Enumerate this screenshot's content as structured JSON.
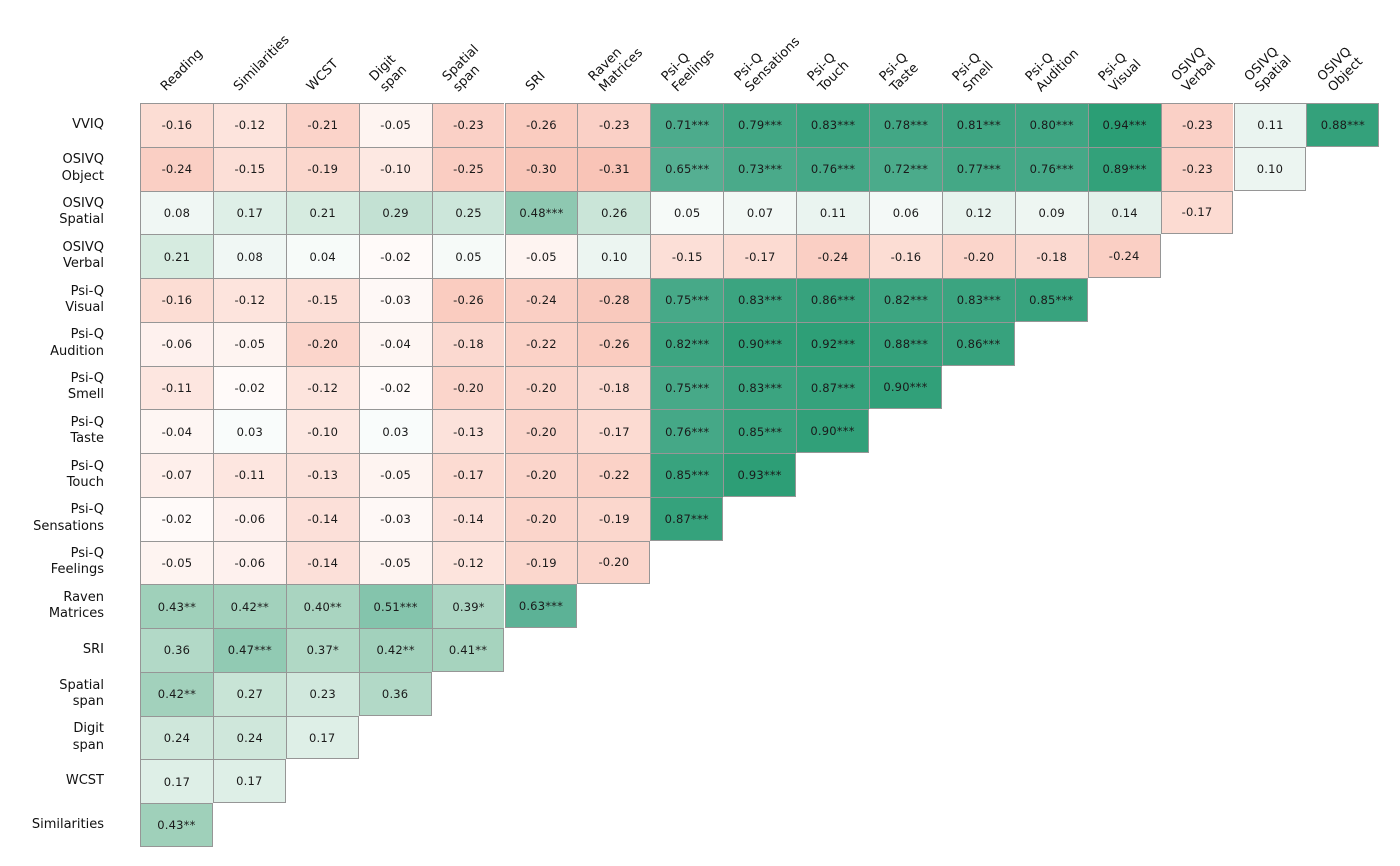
{
  "chart_data": {
    "type": "heatmap",
    "title": "",
    "layout_hint": "lower-left triangular correlation matrix, column labels rotated 45 degrees on top, row labels on left",
    "x_tick_labels": [
      "Reading",
      "Similarities",
      "WCST",
      "Digit\nspan",
      "Spatial\nspan",
      "SRI",
      "Raven\nMatrices",
      "Psi-Q\nFeelings",
      "Psi-Q\nSensations",
      "Psi-Q\nTouch",
      "Psi-Q\nTaste",
      "Psi-Q\nSmell",
      "Psi-Q\nAudition",
      "Psi-Q\nVisual",
      "OSIVQ\nVerbal",
      "OSIVQ\nSpatial",
      "OSIVQ\nObject"
    ],
    "y_tick_labels": [
      "VVIQ",
      "OSIVQ\nObject",
      "OSIVQ\nSpatial",
      "OSIVQ\nVerbal",
      "Psi-Q\nVisual",
      "Psi-Q\nAudition",
      "Psi-Q\nSmell",
      "Psi-Q\nTaste",
      "Psi-Q\nTouch",
      "Psi-Q\nSensations",
      "Psi-Q\nFeelings",
      "Raven\nMatrices",
      "SRI",
      "Spatial\nspan",
      "Digit\nspan",
      "WCST",
      "Similarities"
    ],
    "cells": [
      [
        "-0.16",
        "-0.12",
        "-0.21",
        "-0.05",
        "-0.23",
        "-0.26",
        "-0.23",
        "0.71***",
        "0.79***",
        "0.83***",
        "0.78***",
        "0.81***",
        "0.80***",
        "0.94***",
        "-0.23",
        "0.11",
        "0.88***"
      ],
      [
        "-0.24",
        "-0.15",
        "-0.19",
        "-0.10",
        "-0.25",
        "-0.30",
        "-0.31",
        "0.65***",
        "0.73***",
        "0.76***",
        "0.72***",
        "0.77***",
        "0.76***",
        "0.89***",
        "-0.23",
        "0.10"
      ],
      [
        "0.08",
        "0.17",
        "0.21",
        "0.29",
        "0.25",
        "0.48***",
        "0.26",
        "0.05",
        "0.07",
        "0.11",
        "0.06",
        "0.12",
        "0.09",
        "0.14",
        "-0.17"
      ],
      [
        "0.21",
        "0.08",
        "0.04",
        "-0.02",
        "0.05",
        "-0.05",
        "0.10",
        "-0.15",
        "-0.17",
        "-0.24",
        "-0.16",
        "-0.20",
        "-0.18",
        "-0.24"
      ],
      [
        "-0.16",
        "-0.12",
        "-0.15",
        "-0.03",
        "-0.26",
        "-0.24",
        "-0.28",
        "0.75***",
        "0.83***",
        "0.86***",
        "0.82***",
        "0.83***",
        "0.85***"
      ],
      [
        "-0.06",
        "-0.05",
        "-0.20",
        "-0.04",
        "-0.18",
        "-0.22",
        "-0.26",
        "0.82***",
        "0.90***",
        "0.92***",
        "0.88***",
        "0.86***"
      ],
      [
        "-0.11",
        "-0.02",
        "-0.12",
        "-0.02",
        "-0.20",
        "-0.20",
        "-0.18",
        "0.75***",
        "0.83***",
        "0.87***",
        "0.90***"
      ],
      [
        "-0.04",
        "0.03",
        "-0.10",
        "0.03",
        "-0.13",
        "-0.20",
        "-0.17",
        "0.76***",
        "0.85***",
        "0.90***"
      ],
      [
        "-0.07",
        "-0.11",
        "-0.13",
        "-0.05",
        "-0.17",
        "-0.20",
        "-0.22",
        "0.85***",
        "0.93***"
      ],
      [
        "-0.02",
        "-0.06",
        "-0.14",
        "-0.03",
        "-0.14",
        "-0.20",
        "-0.19",
        "0.87***"
      ],
      [
        "-0.05",
        "-0.06",
        "-0.14",
        "-0.05",
        "-0.12",
        "-0.19",
        "-0.20"
      ],
      [
        "0.43**",
        "0.42**",
        "0.40**",
        "0.51***",
        "0.39*",
        "0.63***"
      ],
      [
        "0.36",
        "0.47***",
        "0.37*",
        "0.42**",
        "0.41**"
      ],
      [
        "0.42**",
        "0.27",
        "0.23",
        "0.36"
      ],
      [
        "0.24",
        "0.24",
        "0.17"
      ],
      [
        "0.17",
        "0.17"
      ],
      [
        "0.43**"
      ]
    ],
    "color_scale": {
      "type": "diverging-red-white-green",
      "stops": [
        [
          -1.0,
          "#F0654A"
        ],
        [
          -0.35,
          "#F8BEB0"
        ],
        [
          -0.2,
          "#FBD5CB"
        ],
        [
          -0.1,
          "#FDE8E2"
        ],
        [
          0.0,
          "#FFFFFF"
        ],
        [
          0.1,
          "#ECF5F1"
        ],
        [
          0.2,
          "#D8ECE2"
        ],
        [
          0.4,
          "#A9D4C0"
        ],
        [
          0.65,
          "#55AF92"
        ],
        [
          0.95,
          "#2A9D74"
        ],
        [
          1.0,
          "#26996F"
        ]
      ]
    },
    "grid_line_color": "#969696",
    "text_color": "#1a1a1a"
  }
}
